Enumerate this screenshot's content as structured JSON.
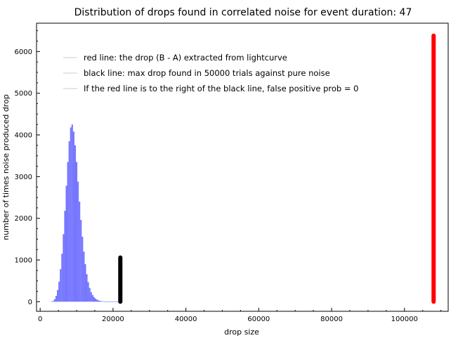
{
  "chart_data": {
    "type": "bar",
    "title": "Distribution of drops found in correlated noise for event duration: 47",
    "xlabel": "drop size",
    "ylabel": "number of times noise produced drop",
    "xlim": [
      -1000,
      112000
    ],
    "ylim": [
      -230,
      6680
    ],
    "x_ticks": [
      0,
      20000,
      40000,
      60000,
      80000,
      100000
    ],
    "x_tick_labels": [
      "0",
      "20000",
      "40000",
      "60000",
      "80000",
      "100000"
    ],
    "y_ticks": [
      0,
      1000,
      2000,
      3000,
      4000,
      5000,
      6000
    ],
    "y_tick_labels": [
      "0",
      "1000",
      "2000",
      "3000",
      "4000",
      "5000",
      "6000"
    ],
    "grid": false,
    "legend_placement": "top-left",
    "legend": [
      {
        "label": "red line: the drop (B - A) extracted from lightcurve"
      },
      {
        "label": "black line: max drop found in 50000 trials against pure noise"
      },
      {
        "label": "If the red line is to the right of the black line, false positive prob = 0"
      }
    ],
    "histogram": {
      "color": "#6666ff",
      "bin_width": 400,
      "x": [
        3000,
        3400,
        3800,
        4200,
        4600,
        5000,
        5400,
        5800,
        6200,
        6600,
        7000,
        7400,
        7800,
        8200,
        8600,
        9000,
        9400,
        9800,
        10200,
        10600,
        11000,
        11400,
        11800,
        12200,
        12600,
        13000,
        13400,
        13800,
        14200,
        14600,
        15000,
        15400,
        15800,
        16200,
        16600,
        17000,
        17400,
        17800,
        18200,
        18600,
        19000,
        19400,
        19800,
        20200,
        20600,
        21000
      ],
      "values": [
        5,
        20,
        60,
        140,
        280,
        480,
        780,
        1150,
        1620,
        2180,
        2780,
        3350,
        3850,
        4180,
        4250,
        4080,
        3750,
        3350,
        2880,
        2400,
        1960,
        1560,
        1200,
        900,
        660,
        470,
        330,
        230,
        160,
        110,
        75,
        50,
        34,
        23,
        15,
        10,
        7,
        5,
        3,
        2,
        2,
        1,
        1,
        1,
        1,
        1
      ]
    },
    "vertical_lines": [
      {
        "name": "red line",
        "x": 108000,
        "y0": 0,
        "y1": 6380,
        "color": "#ff0000"
      },
      {
        "name": "black line",
        "x": 22000,
        "y0": 0,
        "y1": 1060,
        "color": "#000000"
      }
    ]
  }
}
